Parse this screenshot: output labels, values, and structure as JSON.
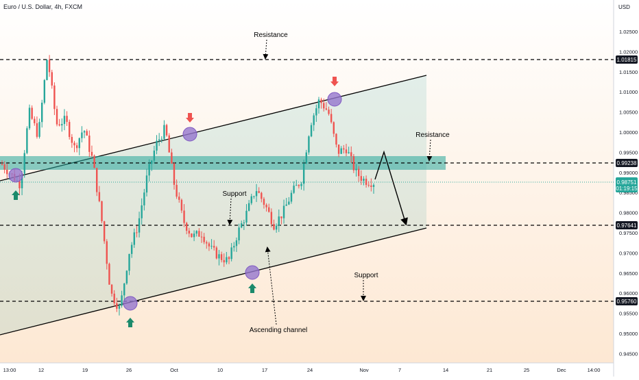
{
  "header": {
    "title": "Euro / U.S. Dollar, 4h, FXCM"
  },
  "price_axis": {
    "currency": "USD"
  },
  "current_price": {
    "value": "0.98751",
    "countdown": "01:19:15"
  },
  "colors": {
    "up": "#26a69a",
    "down": "#ef5350",
    "zone": "#26a69a",
    "circle": "#9575cd",
    "bg_top": "#ffffff",
    "bg_bottom": "#fde8d3"
  },
  "chart_data": {
    "type": "candlestick",
    "symbol": "EURUSD",
    "timeframe": "4h",
    "ylim": [
      0.941,
      1.036
    ],
    "y_ticks": [
      "1.02500",
      "1.02000",
      "1.01500",
      "1.01000",
      "1.00500",
      "1.00000",
      "0.99500",
      "0.99000",
      "0.98500",
      "0.98000",
      "0.97500",
      "0.97000",
      "0.96500",
      "0.96000",
      "0.95500",
      "0.95000",
      "0.94500"
    ],
    "x_ticks": [
      "13:00",
      "12",
      "19",
      "26",
      "Oct",
      "10",
      "17",
      "24",
      "Nov",
      "7",
      "14",
      "21",
      "25",
      "Dec",
      "14:00"
    ],
    "level_badges": [
      "1.01815",
      "0.99238",
      "0.97641",
      "0.95760"
    ],
    "annotations": [
      "Resistance",
      "Resistance",
      "Support",
      "Support",
      "Ascending channel"
    ],
    "price_path": [
      0.992,
      0.9895,
      0.987,
      1.005,
      0.999,
      1.019,
      1.002,
      1.003,
      0.996,
      1.001,
      0.993,
      0.978,
      0.96,
      0.956,
      0.97,
      0.977,
      0.989,
      0.997,
      1.001,
      0.987,
      0.978,
      0.974,
      0.975,
      0.971,
      0.969,
      0.968,
      0.975,
      0.98,
      0.986,
      0.982,
      0.977,
      0.98,
      0.985,
      0.988,
      1.002,
      1.008,
      1.005,
      0.995,
      0.996,
      0.99,
      0.988,
      0.9875
    ],
    "zones": [
      {
        "name": "Resistance zone",
        "from": 0.9914,
        "to": 0.9932
      }
    ]
  }
}
